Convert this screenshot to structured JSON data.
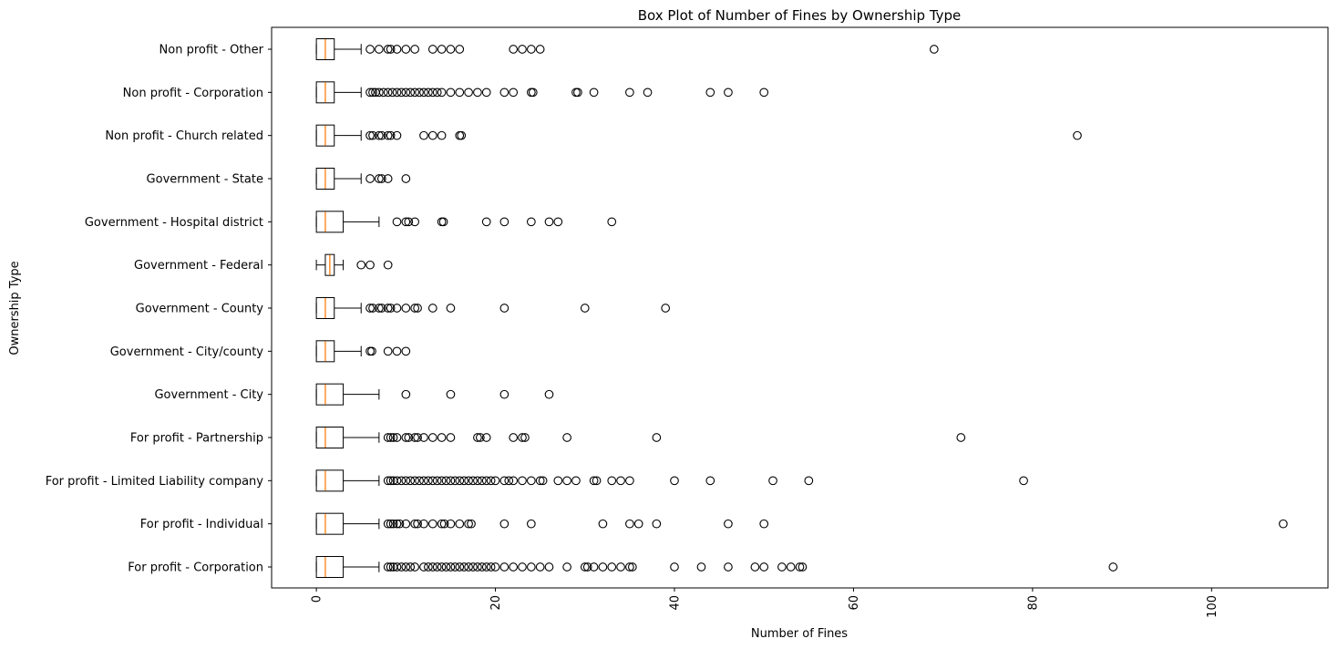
{
  "chart_data": {
    "type": "boxplot",
    "orientation": "horizontal",
    "title": "Box Plot of Number of Fines by Ownership Type",
    "xlabel": "Number of Fines",
    "ylabel": "Ownership Type",
    "xlim": [
      -5,
      113
    ],
    "xticks": [
      0,
      20,
      40,
      60,
      80,
      100
    ],
    "xtick_labels": [
      "0",
      "20",
      "40",
      "60",
      "80",
      "100"
    ],
    "xtick_rotation": 90,
    "grid": false,
    "legend": "none",
    "colors": {
      "box": "#000000",
      "median": "#ff7f0e",
      "outlier": "#000000",
      "axis": "#000000"
    },
    "categories": [
      "For profit - Corporation",
      "For profit - Individual",
      "For profit - Limited Liability company",
      "For profit - Partnership",
      "Government - City",
      "Government - City/county",
      "Government - County",
      "Government - Federal",
      "Government - Hospital district",
      "Government - State",
      "Non profit - Church related",
      "Non profit - Corporation",
      "Non profit - Other"
    ],
    "boxes": [
      {
        "category": "For profit - Corporation",
        "whislo": 0,
        "q1": 0,
        "med": 1,
        "q3": 3,
        "whishi": 7,
        "fliers": [
          8,
          8.3,
          8.6,
          9,
          9.5,
          10,
          10.5,
          11,
          12,
          12.5,
          13,
          13.5,
          14,
          14.5,
          15,
          15.5,
          16,
          16.5,
          17,
          17.5,
          18,
          18.5,
          19,
          19.5,
          20,
          21,
          22,
          23,
          24,
          25,
          26,
          28,
          30,
          30.3,
          31,
          32,
          33,
          34,
          35,
          35.3,
          40,
          43,
          46,
          49,
          50,
          52,
          53,
          54,
          54.3,
          89
        ]
      },
      {
        "category": "For profit - Individual",
        "whislo": 0,
        "q1": 0,
        "med": 1,
        "q3": 3,
        "whishi": 7,
        "fliers": [
          8,
          8.3,
          8.6,
          9,
          9.3,
          10,
          11,
          11.3,
          12,
          13,
          14,
          14.3,
          15,
          16,
          17,
          17.3,
          21,
          24,
          32,
          35,
          36,
          38,
          46,
          50,
          108
        ]
      },
      {
        "category": "For profit - Limited Liability company",
        "whislo": 0,
        "q1": 0,
        "med": 1,
        "q3": 3,
        "whishi": 7,
        "fliers": [
          8,
          8.3,
          8.6,
          9,
          9.5,
          10,
          10.5,
          11,
          11.5,
          12,
          12.5,
          13,
          13.5,
          14,
          14.5,
          15,
          15.5,
          16,
          16.5,
          17,
          17.5,
          18,
          18.5,
          19,
          19.5,
          20,
          21,
          21.5,
          22,
          23,
          24,
          25,
          25.3,
          27,
          28,
          29,
          31,
          31.3,
          33,
          34,
          35,
          40,
          44,
          51,
          55,
          79
        ]
      },
      {
        "category": "For profit - Partnership",
        "whislo": 0,
        "q1": 0,
        "med": 1,
        "q3": 3,
        "whishi": 7,
        "fliers": [
          8,
          8.3,
          8.6,
          9,
          10,
          10.3,
          11,
          11.3,
          12,
          13,
          14,
          15,
          18,
          18.3,
          19,
          22,
          23,
          23.3,
          28,
          38,
          72
        ]
      },
      {
        "category": "Government - City",
        "whislo": 0,
        "q1": 0,
        "med": 1,
        "q3": 3,
        "whishi": 7,
        "fliers": [
          10,
          15,
          21,
          26
        ]
      },
      {
        "category": "Government - City/county",
        "whislo": 0,
        "q1": 0,
        "med": 1,
        "q3": 2,
        "whishi": 5,
        "fliers": [
          6,
          6.2,
          8,
          9,
          10
        ]
      },
      {
        "category": "Government - County",
        "whislo": 0,
        "q1": 0,
        "med": 1,
        "q3": 2,
        "whishi": 5,
        "fliers": [
          6,
          6.3,
          7,
          7.3,
          8,
          8.3,
          9,
          10,
          11,
          11.3,
          13,
          15,
          21,
          30,
          39
        ]
      },
      {
        "category": "Government - Federal",
        "whislo": 0,
        "q1": 1,
        "med": 1.5,
        "q3": 2,
        "whishi": 3,
        "fliers": [
          5,
          6,
          8
        ]
      },
      {
        "category": "Government - Hospital district",
        "whislo": 0,
        "q1": 0,
        "med": 1,
        "q3": 3,
        "whishi": 7,
        "fliers": [
          9,
          10,
          10.3,
          11,
          14,
          14.2,
          19,
          21,
          24,
          26,
          27,
          33
        ]
      },
      {
        "category": "Government - State",
        "whislo": 0,
        "q1": 0,
        "med": 1,
        "q3": 2,
        "whishi": 5,
        "fliers": [
          6,
          7,
          7.3,
          8,
          10
        ]
      },
      {
        "category": "Non profit - Church related",
        "whislo": 0,
        "q1": 0,
        "med": 1,
        "q3": 2,
        "whishi": 5,
        "fliers": [
          6,
          6.3,
          7,
          7.3,
          8,
          8.3,
          9,
          12,
          13,
          14,
          16,
          16.2,
          85
        ]
      },
      {
        "category": "Non profit - Corporation",
        "whislo": 0,
        "q1": 0,
        "med": 1,
        "q3": 2,
        "whishi": 5,
        "fliers": [
          6,
          6.3,
          6.6,
          7,
          7.5,
          8,
          8.5,
          9,
          9.5,
          10,
          10.5,
          11,
          11.5,
          12,
          12.5,
          13,
          13.5,
          14,
          15,
          16,
          17,
          18,
          19,
          21,
          22,
          24,
          24.2,
          29,
          29.2,
          31,
          35,
          37,
          44,
          46,
          50
        ]
      },
      {
        "category": "Non profit - Other",
        "whislo": 0,
        "q1": 0,
        "med": 1,
        "q3": 2,
        "whishi": 5,
        "fliers": [
          6,
          7,
          8,
          8.3,
          9,
          10,
          11,
          13,
          14,
          15,
          16,
          22,
          23,
          24,
          25,
          69
        ]
      }
    ]
  }
}
